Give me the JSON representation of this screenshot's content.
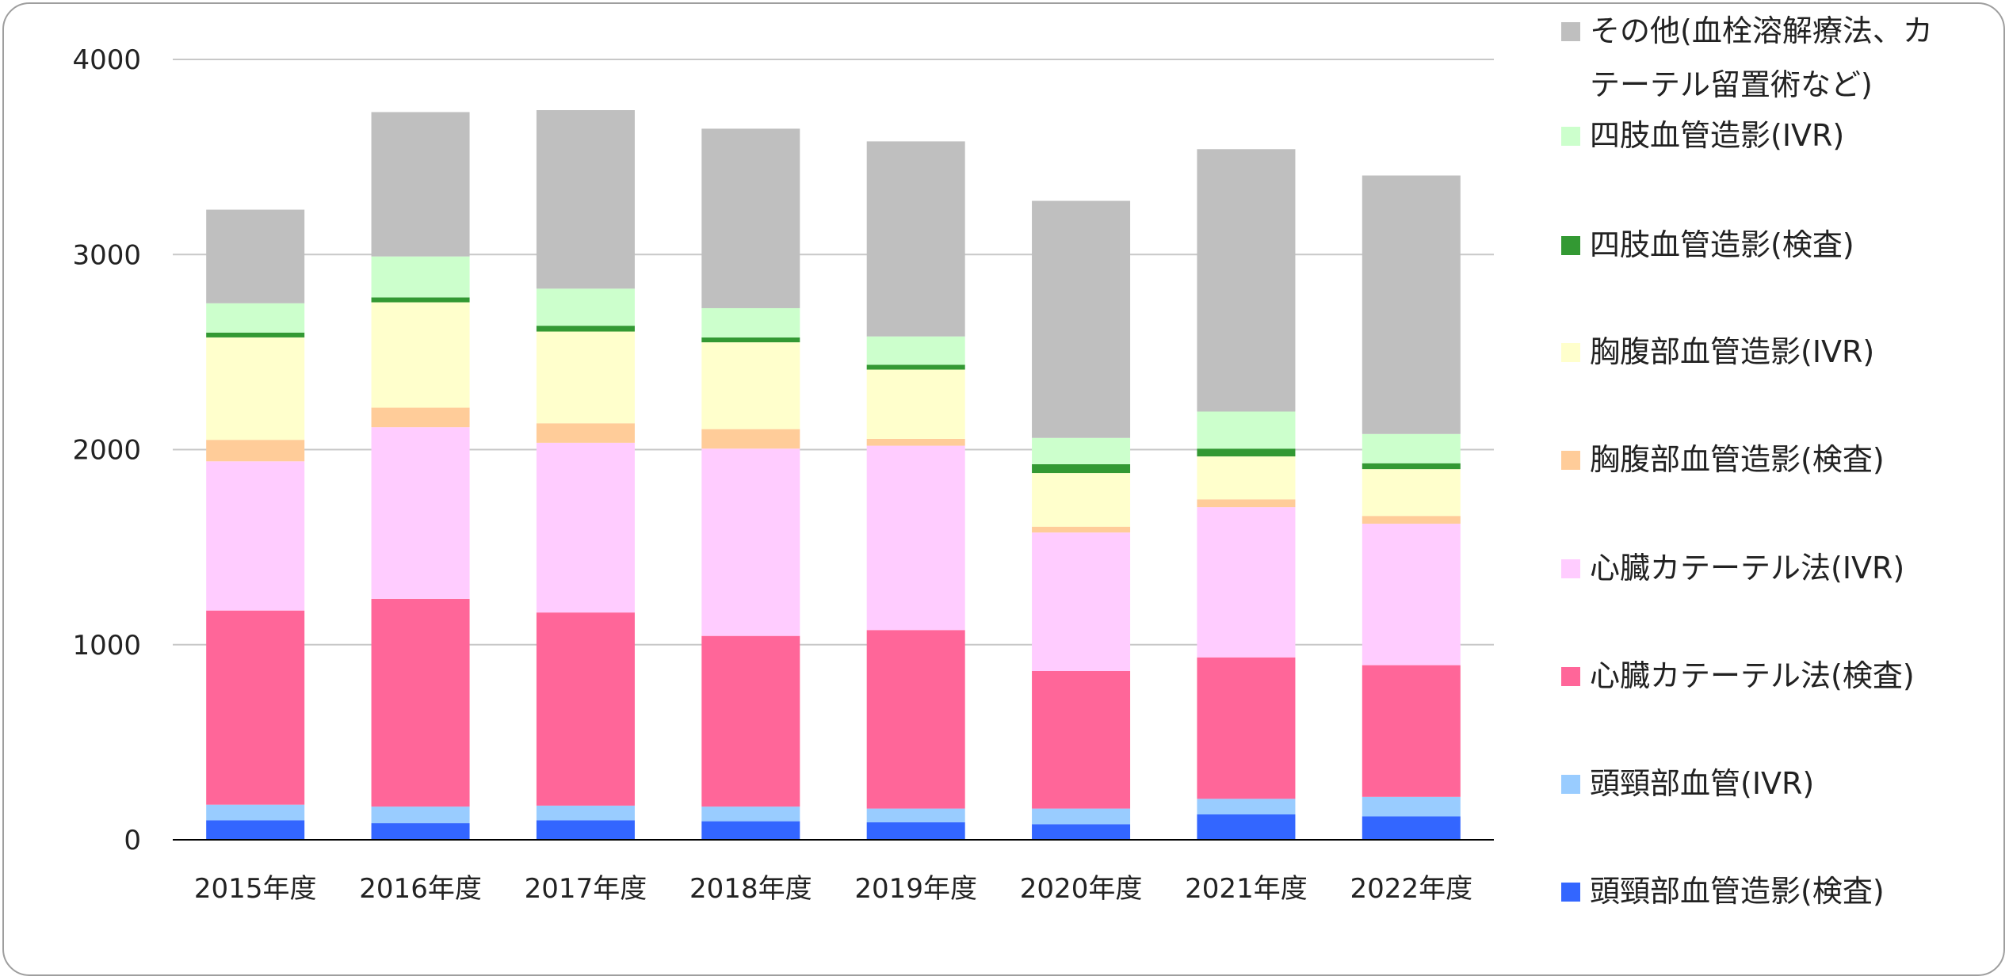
{
  "chart_data": {
    "type": "bar",
    "stacked": true,
    "categories": [
      "2015年度",
      "2016年度",
      "2017年度",
      "2018年度",
      "2019年度",
      "2020年度",
      "2021年度",
      "2022年度"
    ],
    "ylim": [
      0,
      4000
    ],
    "yticks": [
      "0",
      "1000",
      "2000",
      "3000",
      "4000"
    ],
    "grid": true,
    "legend_position": "right",
    "series": [
      {
        "name": "頭頸部血管造影(検査)",
        "color": "#3366ff",
        "values": [
          100,
          85,
          100,
          95,
          90,
          80,
          130,
          120
        ]
      },
      {
        "name": "頭頸部血管(IVR)",
        "color": "#99ccff",
        "values": [
          80,
          85,
          75,
          75,
          70,
          80,
          80,
          100
        ]
      },
      {
        "name": "心臓カテーテル法(検査)",
        "color": "#ff6699",
        "values": [
          995,
          1065,
          990,
          875,
          915,
          705,
          725,
          675
        ]
      },
      {
        "name": "心臓カテーテル法(IVR)",
        "color": "#ffccff",
        "values": [
          765,
          880,
          870,
          960,
          945,
          710,
          770,
          725
        ]
      },
      {
        "name": "胸腹部血管造影(検査)",
        "color": "#ffcc99",
        "values": [
          110,
          100,
          100,
          100,
          35,
          30,
          40,
          40
        ]
      },
      {
        "name": "胸腹部血管造影(IVR)",
        "color": "#ffffcc",
        "values": [
          525,
          540,
          470,
          445,
          355,
          275,
          220,
          240
        ]
      },
      {
        "name": "四肢血管造影(検査)",
        "color": "#339933",
        "values": [
          25,
          25,
          30,
          25,
          25,
          45,
          40,
          30
        ]
      },
      {
        "name": "四肢血管造影(IVR)",
        "color": "#ccffcc",
        "values": [
          150,
          210,
          190,
          150,
          145,
          135,
          190,
          150
        ]
      },
      {
        "name": "その他(血栓溶解療法、カテーテル留置術など)",
        "color": "#bfbfbf",
        "values": [
          480,
          740,
          915,
          920,
          1000,
          1215,
          1345,
          1325
        ]
      }
    ],
    "legend_lines": [
      [
        "その他(血栓溶解療法、カ",
        "テーテル留置術など)"
      ],
      [
        "四肢血管造影(IVR)"
      ],
      [
        "四肢血管造影(検査)"
      ],
      [
        "胸腹部血管造影(IVR)"
      ],
      [
        "胸腹部血管造影(検査)"
      ],
      [
        "心臓カテーテル法(IVR)"
      ],
      [
        "心臓カテーテル法(検査)"
      ],
      [
        "頭頸部血管(IVR)"
      ],
      [
        "頭頸部血管造影(検査)"
      ]
    ]
  }
}
